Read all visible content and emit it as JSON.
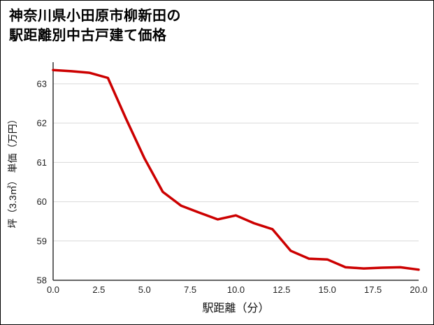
{
  "title": {
    "line1": "神奈川県小田原市柳新田の",
    "line2": "駅距離別中古戸建て価格"
  },
  "chart_data": {
    "type": "line",
    "title": "神奈川県小田原市柳新田の駅距離別中古戸建て価格",
    "xlabel": "駅距離（分）",
    "ylabel": "坪（3.3㎡） 単価（万円）",
    "x": [
      0,
      1,
      2,
      3,
      4,
      5,
      6,
      7,
      8,
      9,
      10,
      11,
      12,
      13,
      14,
      15,
      16,
      17,
      18,
      19,
      20
    ],
    "y": [
      63.35,
      63.32,
      63.28,
      63.15,
      62.1,
      61.1,
      60.25,
      59.9,
      59.72,
      59.55,
      59.65,
      59.45,
      59.3,
      58.75,
      58.55,
      58.53,
      58.33,
      58.3,
      58.32,
      58.33,
      58.27
    ],
    "xlim": [
      0,
      20
    ],
    "ylim": [
      58,
      63.55
    ],
    "x_ticks": [
      "0.0",
      "2.5",
      "5.0",
      "7.5",
      "10.0",
      "12.5",
      "15.0",
      "17.5",
      "20.0"
    ],
    "y_ticks": [
      58,
      59,
      60,
      61,
      62,
      63
    ],
    "line_color": "#cc0000",
    "axis_color": "#333333",
    "grid_color": "#d9d9d9",
    "tick_label_color": "#222222",
    "grid": "horizontal",
    "legend": "none"
  }
}
